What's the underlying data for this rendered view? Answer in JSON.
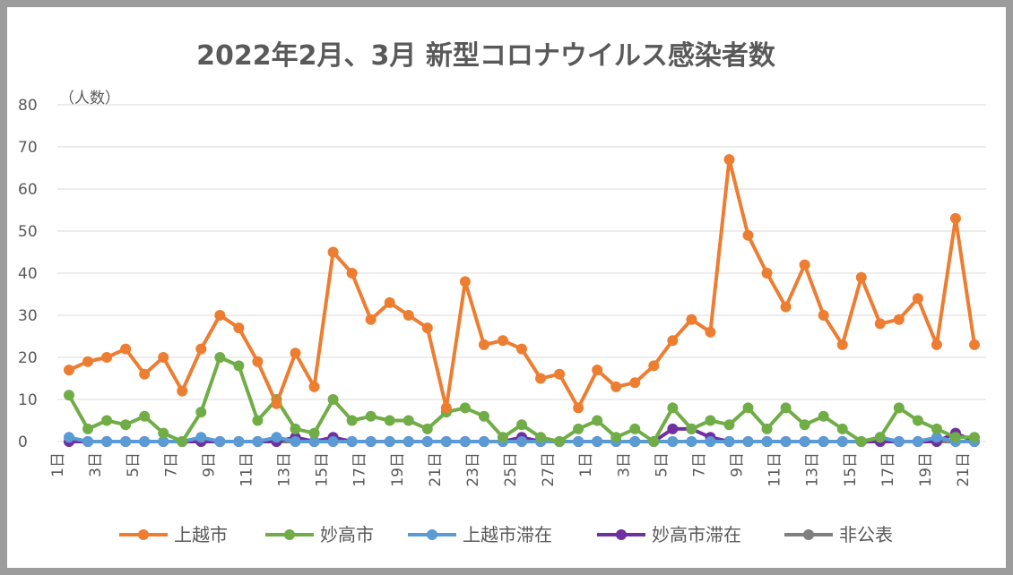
{
  "chart_data": {
    "type": "line",
    "title": "2022年2月、3月 新型コロナウイルス感染者数",
    "y_unit_label": "（人数）",
    "ylim": [
      0,
      80
    ],
    "y_ticks": [
      "0",
      "10",
      "20",
      "30",
      "40",
      "50",
      "60",
      "70",
      "80"
    ],
    "grid": true,
    "legend_position": "bottom",
    "x": [
      "1日",
      "2日",
      "3日",
      "4日",
      "5日",
      "6日",
      "7日",
      "8日",
      "9日",
      "10日",
      "11日",
      "12日",
      "13日",
      "14日",
      "15日",
      "16日",
      "17日",
      "18日",
      "19日",
      "20日",
      "21日",
      "22日",
      "23日",
      "24日",
      "25日",
      "26日",
      "27日",
      "28日",
      "1日",
      "2日",
      "3日",
      "4日",
      "5日",
      "6日",
      "7日",
      "8日",
      "9日",
      "10日",
      "11日",
      "12日",
      "13日",
      "14日",
      "15日",
      "16日",
      "17日",
      "18日",
      "19日",
      "20日",
      "21日"
    ],
    "x_tick_labels": [
      "1日",
      "3日",
      "5日",
      "7日",
      "9日",
      "11日",
      "13日",
      "15日",
      "17日",
      "19日",
      "21日",
      "23日",
      "25日",
      "27日",
      "1日",
      "3日",
      "5日",
      "7日",
      "9日",
      "11日",
      "13日",
      "15日",
      "17日",
      "19日",
      "21日"
    ],
    "series": [
      {
        "name": "上越市",
        "color": "#ed7d31",
        "values": [
          17,
          19,
          20,
          22,
          16,
          20,
          12,
          22,
          30,
          27,
          19,
          9,
          21,
          13,
          45,
          40,
          29,
          33,
          30,
          27,
          8,
          38,
          23,
          24,
          22,
          15,
          16,
          8,
          17,
          13,
          14,
          18,
          24,
          29,
          26,
          67,
          49,
          40,
          32,
          42,
          30,
          23,
          39,
          28,
          29,
          34,
          23,
          53,
          23
        ]
      },
      {
        "name": "妙高市",
        "color": "#70ad47",
        "values": [
          11,
          3,
          5,
          4,
          6,
          2,
          0,
          7,
          20,
          18,
          5,
          10,
          3,
          2,
          10,
          5,
          6,
          5,
          5,
          3,
          7,
          8,
          6,
          1,
          4,
          1,
          0,
          3,
          5,
          1,
          3,
          0,
          8,
          3,
          5,
          4,
          8,
          3,
          8,
          4,
          6,
          3,
          0,
          1,
          8,
          5,
          3,
          1,
          1
        ]
      },
      {
        "name": "上越市滞在",
        "color": "#5b9bd5",
        "values": [
          1,
          0,
          0,
          0,
          0,
          0,
          0,
          1,
          0,
          0,
          0,
          1,
          0,
          0,
          0,
          0,
          0,
          0,
          0,
          0,
          0,
          0,
          0,
          0,
          0,
          0,
          0,
          0,
          0,
          0,
          0,
          0,
          0,
          0,
          0,
          0,
          0,
          0,
          0,
          0,
          0,
          0,
          0,
          1,
          0,
          0,
          1,
          0,
          0
        ]
      },
      {
        "name": "妙高市滞在",
        "color": "#7030a0",
        "values": [
          0,
          0,
          0,
          0,
          0,
          0,
          0,
          0,
          0,
          0,
          0,
          0,
          1,
          0,
          1,
          0,
          0,
          0,
          0,
          0,
          0,
          0,
          0,
          0,
          1,
          0,
          0,
          0,
          0,
          0,
          0,
          0,
          3,
          3,
          1,
          0,
          0,
          0,
          0,
          0,
          0,
          0,
          0,
          0,
          0,
          0,
          0,
          2,
          0
        ]
      },
      {
        "name": "非公表",
        "color": "#7f7f7f",
        "values": [
          0,
          0,
          0,
          0,
          0,
          0,
          0,
          0,
          0,
          0,
          0,
          0,
          0,
          0,
          0,
          0,
          0,
          0,
          0,
          0,
          0,
          0,
          0,
          0,
          0,
          0,
          0,
          0,
          0,
          0,
          0,
          0,
          0,
          0,
          0,
          0,
          0,
          0,
          0,
          0,
          0,
          0,
          0,
          0,
          0,
          0,
          0,
          0,
          0
        ]
      }
    ]
  }
}
